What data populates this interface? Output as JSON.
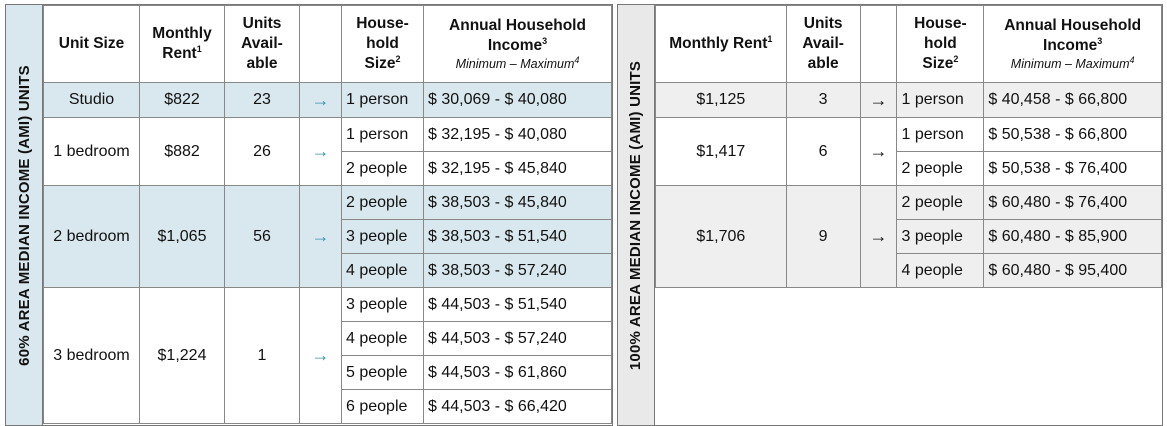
{
  "left": {
    "side_label": "60% AREA MEDIAN INCOME (AMI) UNITS",
    "headers": {
      "unit_size": "Unit Size",
      "monthly_rent_a": "Monthly",
      "monthly_rent_b": "Rent",
      "units_a": "Units",
      "units_b": "Avail-",
      "units_c": "able",
      "household_a": "House-",
      "household_b": "hold",
      "household_c": "Size",
      "income_a": "Annual Household",
      "income_b": "Income",
      "income_sub": "Minimum – Maximum",
      "sup1": "1",
      "sup2": "2",
      "sup3": "3",
      "sup4": "4"
    },
    "groups": [
      {
        "unit_size": "Studio",
        "rent": "$822",
        "units": "23",
        "arrow": "→",
        "rows": [
          {
            "size": "1 person",
            "income": "$ 30,069 - $ 40,080"
          }
        ]
      },
      {
        "unit_size": "1 bedroom",
        "rent": "$882",
        "units": "26",
        "arrow": "→",
        "rows": [
          {
            "size": "1 person",
            "income": "$ 32,195 - $ 40,080"
          },
          {
            "size": "2 people",
            "income": "$ 32,195 - $ 45,840"
          }
        ]
      },
      {
        "unit_size": "2 bedroom",
        "rent": "$1,065",
        "units": "56",
        "arrow": "→",
        "rows": [
          {
            "size": "2 people",
            "income": "$ 38,503 - $ 45,840"
          },
          {
            "size": "3 people",
            "income": "$ 38,503 - $ 51,540"
          },
          {
            "size": "4 people",
            "income": "$ 38,503 - $ 57,240"
          }
        ]
      },
      {
        "unit_size": "3 bedroom",
        "rent": "$1,224",
        "units": "1",
        "arrow": "→",
        "rows": [
          {
            "size": "3 people",
            "income": "$ 44,503 - $ 51,540"
          },
          {
            "size": "4 people",
            "income": "$ 44,503 - $ 57,240"
          },
          {
            "size": "5 people",
            "income": "$ 44,503 - $ 61,860"
          },
          {
            "size": "6 people",
            "income": "$ 44,503 - $ 66,420"
          }
        ]
      }
    ]
  },
  "right": {
    "side_label": "100% AREA MEDIAN INCOME (AMI) UNITS",
    "headers": {
      "monthly_rent": "Monthly Rent",
      "units_a": "Units",
      "units_b": "Avail-",
      "units_c": "able",
      "household_a": "House-",
      "household_b": "hold",
      "household_c": "Size",
      "income_a": "Annual Household",
      "income_b": "Income",
      "income_sub": "Minimum – Maximum",
      "sup1": "1",
      "sup2": "2",
      "sup3": "3",
      "sup4": "4"
    },
    "groups": [
      {
        "rent": "$1,125",
        "units": "3",
        "arrow": "→",
        "rows": [
          {
            "size": "1 person",
            "income": "$ 40,458 - $ 66,800"
          }
        ]
      },
      {
        "rent": "$1,417",
        "units": "6",
        "arrow": "→",
        "rows": [
          {
            "size": "1 person",
            "income": "$ 50,538 - $ 66,800"
          },
          {
            "size": "2 people",
            "income": "$ 50,538 - $ 76,400"
          }
        ]
      },
      {
        "rent": "$1,706",
        "units": "9",
        "arrow": "→",
        "rows": [
          {
            "size": "2 people",
            "income": "$ 60,480 - $ 76,400"
          },
          {
            "size": "3 people",
            "income": "$ 60,480 - $ 85,900"
          },
          {
            "size": "4 people",
            "income": "$ 60,480 - $ 95,400"
          }
        ]
      }
    ]
  },
  "colors": {
    "teal_fill": "#d9e8ee",
    "grey_fill": "#efefef",
    "teal_arrow": "#3a8fa8"
  }
}
